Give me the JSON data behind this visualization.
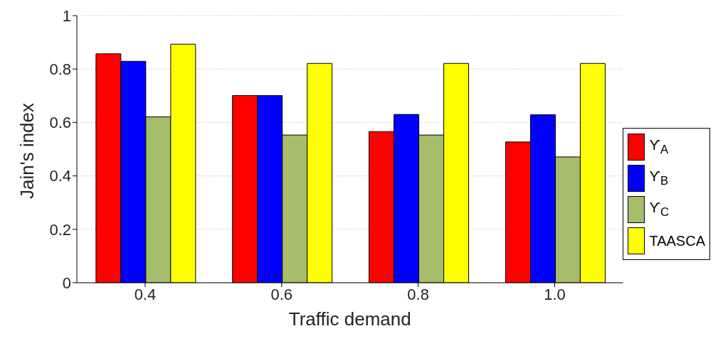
{
  "chart_data": {
    "type": "bar",
    "xlabel": "Traffic demand",
    "ylabel": "Jain's index",
    "categories": [
      "0.4",
      "0.6",
      "0.8",
      "1.0"
    ],
    "series": [
      {
        "name": "ϒ$_{A}$",
        "color": "#ff0000",
        "values": [
          0.857,
          0.701,
          0.566,
          0.527
        ]
      },
      {
        "name": "ϒ$_{B}$",
        "color": "#0000ff",
        "values": [
          0.829,
          0.701,
          0.63,
          0.629
        ]
      },
      {
        "name": "ϒ$_{C}$",
        "color": "#a5bd6b",
        "values": [
          0.621,
          0.553,
          0.553,
          0.471
        ]
      },
      {
        "name": "TAASCA",
        "color": "#ffff00",
        "values": [
          0.893,
          0.821,
          0.821,
          0.821
        ]
      }
    ],
    "ylim": [
      0,
      1
    ],
    "yticks": [
      0,
      0.2,
      0.4,
      0.6,
      0.8,
      1
    ],
    "grid": "y",
    "legend": "right"
  }
}
